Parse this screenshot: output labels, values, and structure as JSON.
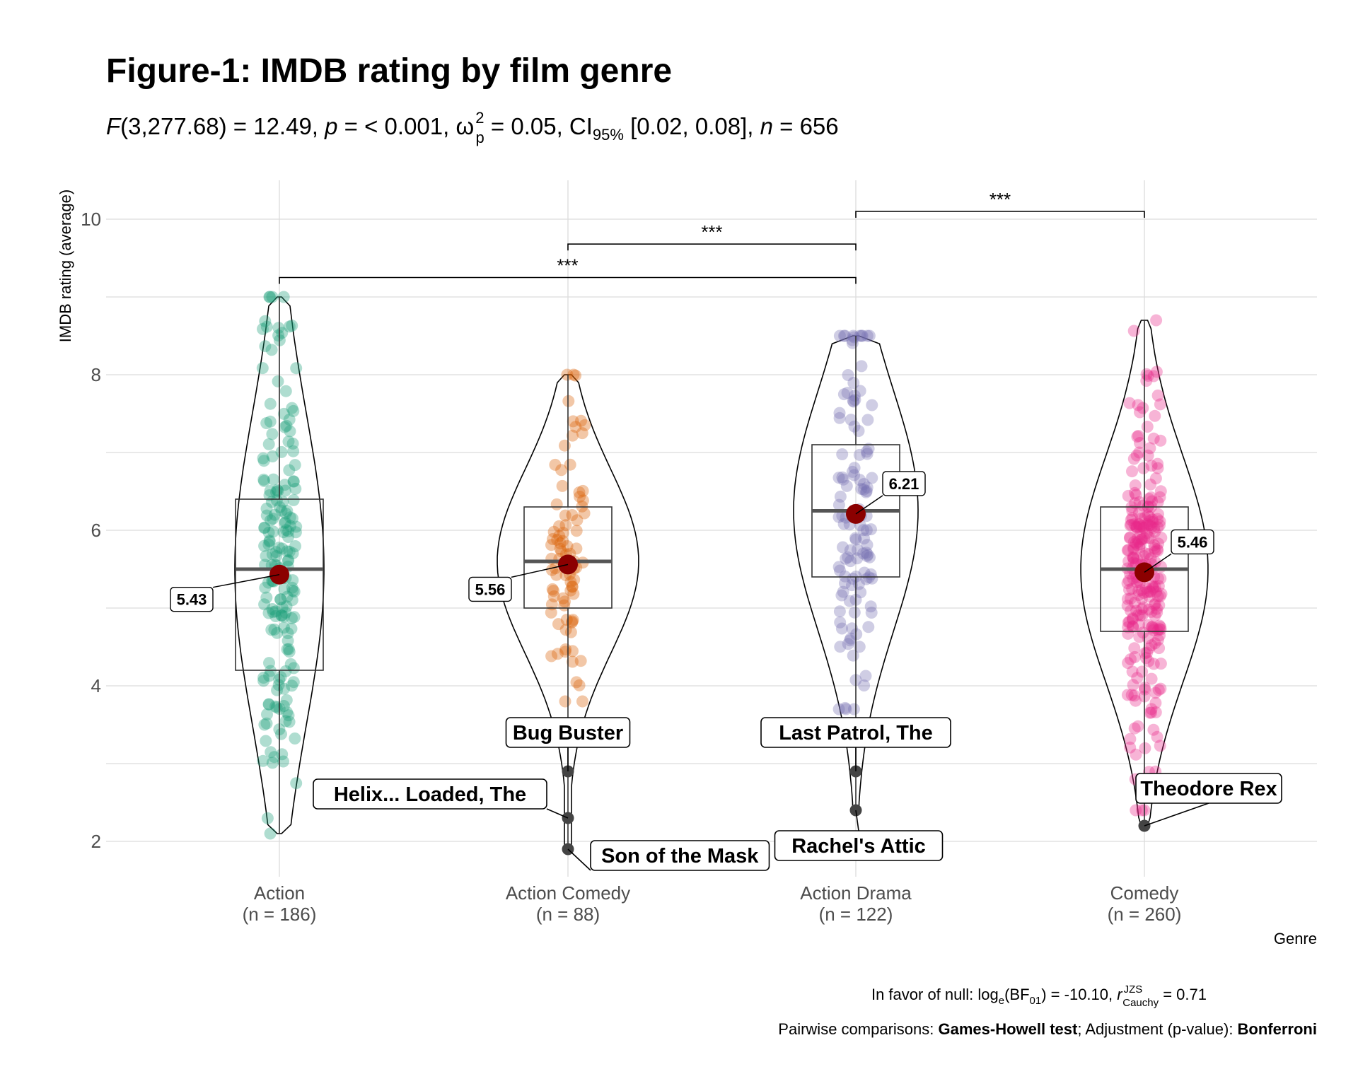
{
  "chart_data": {
    "type": "violin-box-scatter",
    "title": "Figure-1: IMDB rating by film genre",
    "subtitle": {
      "statistic": "F",
      "df": "(3,277.68) = 12.49, ",
      "p_symbol": "p",
      "p_value": " = < 0.001, ",
      "effect_symbol": "ω",
      "effect_sup": "2",
      "effect_sub": "p",
      "effect_value": " = 0.05, CI",
      "ci_sub": "95%",
      "ci_value": " [0.02, 0.08], ",
      "n_symbol": "n",
      "n_value": " = 656"
    },
    "ylabel": "IMDB rating (average)",
    "xlabel": "Genre",
    "ylim": [
      1.6,
      10.5
    ],
    "yticks": [
      2,
      4,
      6,
      8,
      10
    ],
    "grid": true,
    "categories": [
      {
        "name": "Action",
        "n_label": "(n = 186)",
        "n": 186,
        "color": "#1b9e77",
        "min": 2.1,
        "q1": 4.2,
        "median": 5.5,
        "q3": 6.4,
        "max": 9.0,
        "mean": 5.43,
        "mean_label": "5.43",
        "outliers": []
      },
      {
        "name": "Action Comedy",
        "n_label": "(n = 88)",
        "n": 88,
        "color": "#d95f02",
        "min": 3.8,
        "q1": 5.0,
        "median": 5.6,
        "q3": 6.3,
        "max": 8.0,
        "mean": 5.56,
        "mean_label": "5.56",
        "outliers": [
          {
            "y": 2.9,
            "label": "Bug Buster"
          },
          {
            "y": 2.3,
            "label": "Helix... Loaded, The"
          },
          {
            "y": 1.9,
            "label": "Son of the Mask"
          }
        ]
      },
      {
        "name": "Action Drama",
        "n_label": "(n = 122)",
        "n": 122,
        "color": "#7570b3",
        "min": 3.7,
        "q1": 5.4,
        "median": 6.25,
        "q3": 7.1,
        "max": 8.5,
        "mean": 6.21,
        "mean_label": "6.21",
        "outliers": [
          {
            "y": 2.9,
            "label": "Last Patrol, The"
          },
          {
            "y": 2.4,
            "label": "Rachel's Attic"
          }
        ]
      },
      {
        "name": "Comedy",
        "n_label": "(n = 260)",
        "n": 260,
        "color": "#e7298a",
        "min": 2.4,
        "q1": 4.7,
        "median": 5.5,
        "q3": 6.3,
        "max": 8.7,
        "mean": 5.46,
        "mean_label": "5.46",
        "outliers": [
          {
            "y": 2.2,
            "label": "Theodore Rex"
          }
        ]
      }
    ],
    "comparisons": [
      {
        "from": "Action",
        "to": "Action Drama",
        "label": "***",
        "y": 9.25
      },
      {
        "from": "Action Comedy",
        "to": "Action Drama",
        "label": "***",
        "y": 9.68
      },
      {
        "from": "Action Drama",
        "to": "Comedy",
        "label": "***",
        "y": 10.1
      }
    ],
    "caption1": {
      "prefix": "In favor of null: log",
      "log_sub": "e",
      "bf": "(BF",
      "bf_sub": "01",
      "mid": ") = -10.10, ",
      "r_symbol": "r",
      "r_sup": "JZS",
      "r_sub": "Cauchy",
      "value": " = 0.71"
    },
    "caption2": {
      "prefix": "Pairwise comparisons: ",
      "test": "Games-Howell test",
      "middle": "; Adjustment (p-value): ",
      "adjustment": "Bonferroni"
    }
  }
}
